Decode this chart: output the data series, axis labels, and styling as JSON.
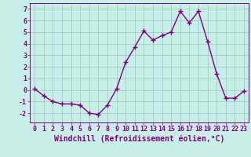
{
  "x": [
    0,
    1,
    2,
    3,
    4,
    5,
    6,
    7,
    8,
    9,
    10,
    11,
    12,
    13,
    14,
    15,
    16,
    17,
    18,
    19,
    20,
    21,
    22,
    23
  ],
  "y": [
    0.1,
    -0.5,
    -1.0,
    -1.2,
    -1.2,
    -1.3,
    -2.0,
    -2.1,
    -1.3,
    0.1,
    2.4,
    3.7,
    5.1,
    4.3,
    4.7,
    5.0,
    6.8,
    5.8,
    6.8,
    4.2,
    1.4,
    -0.7,
    -0.7,
    -0.1
  ],
  "line_color": "#800080",
  "marker": "+",
  "marker_size": 4,
  "marker_lw": 1.0,
  "line_width": 1.0,
  "bg_color": "#c8eee8",
  "grid_color": "#a0ccc8",
  "xlabel": "Windchill (Refroidissement éolien,°C)",
  "xlim": [
    -0.5,
    23.5
  ],
  "ylim": [
    -2.8,
    7.5
  ],
  "yticks": [
    -2,
    -1,
    0,
    1,
    2,
    3,
    4,
    5,
    6,
    7
  ],
  "xticks": [
    0,
    1,
    2,
    3,
    4,
    5,
    6,
    7,
    8,
    9,
    10,
    11,
    12,
    13,
    14,
    15,
    16,
    17,
    18,
    19,
    20,
    21,
    22,
    23
  ],
  "tick_color": "#800080",
  "label_color": "#800080",
  "spine_color": "#800080",
  "font_size": 6.0,
  "xlabel_fontsize": 7.0
}
